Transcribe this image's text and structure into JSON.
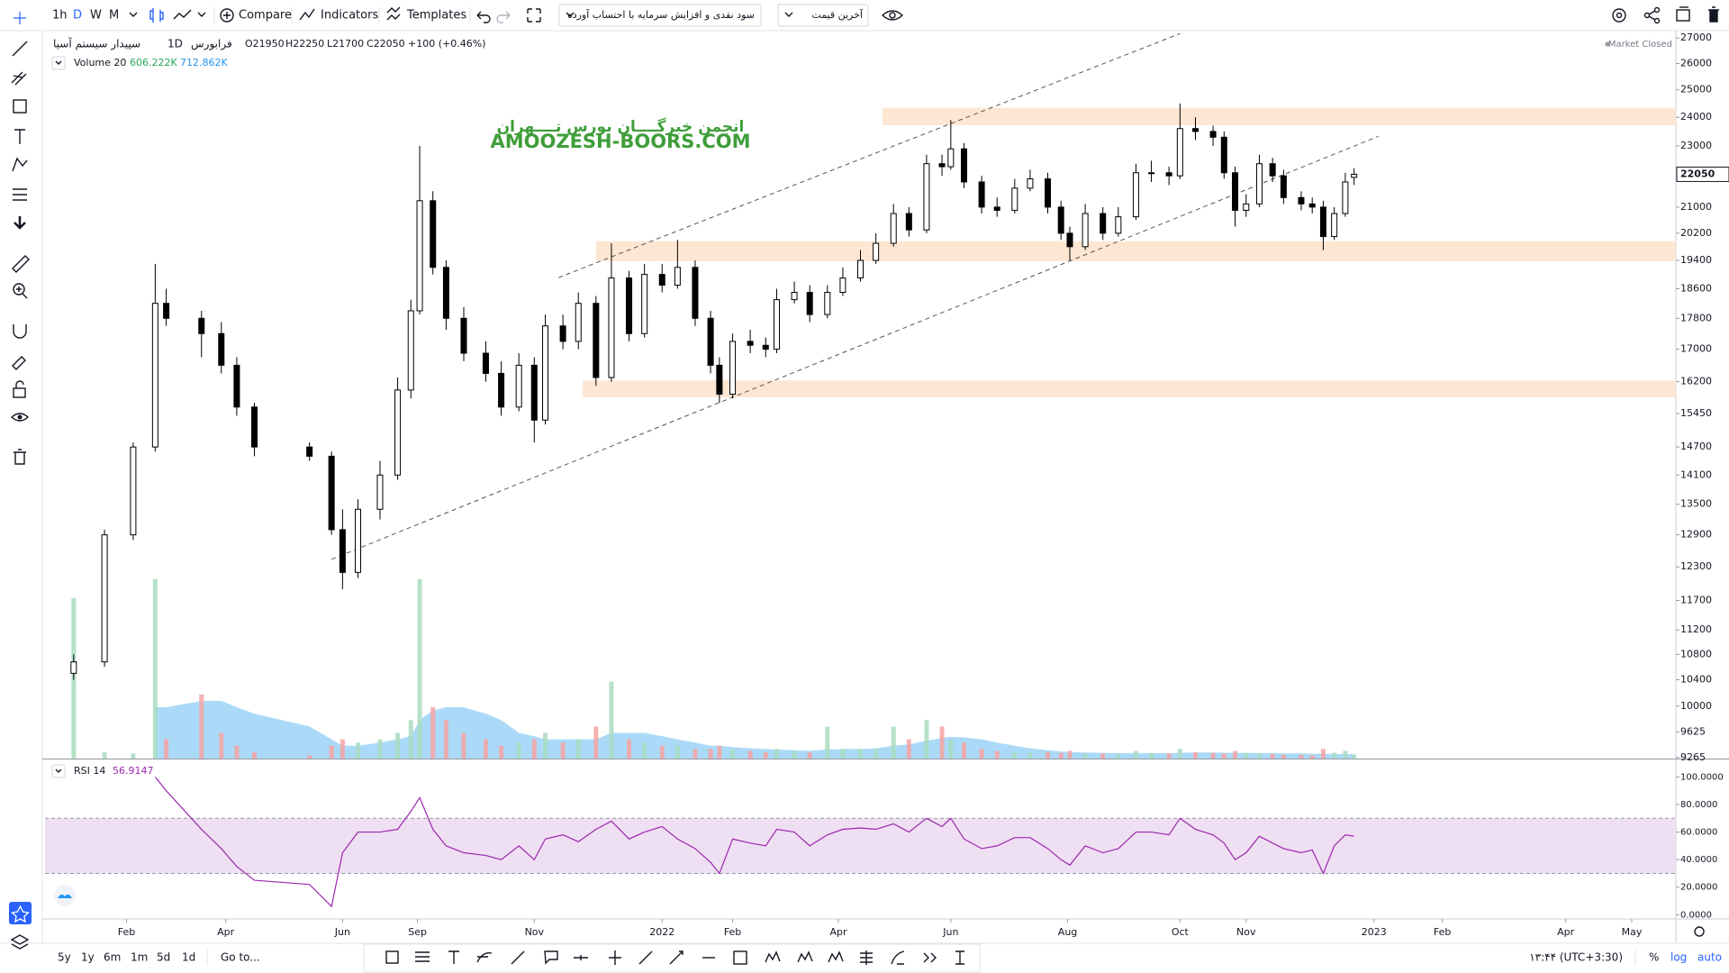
{
  "toolbar": {
    "intervals": [
      "1h",
      "D",
      "W",
      "M"
    ],
    "compare": "Compare",
    "indicators": "Indicators",
    "templates": "Templates",
    "adjustment": "سود نقدی و افزایش سرمایه با احتساب آورده",
    "price_source": "آخرین قیمت"
  },
  "bottom_bar": {
    "ranges": [
      "5y",
      "1y",
      "6m",
      "1m",
      "5d",
      "1d"
    ],
    "goto": "Go to...",
    "clock": "۱۳:۴۴ (UTC+3:30)",
    "percent": "%",
    "log": "log",
    "auto": "auto"
  },
  "chart_data": {
    "type": "candlestick",
    "symbol": "سپیدار سیستم آسیا",
    "interval": "1D",
    "exchange": "فرابورس",
    "legend_labels": [
      "O",
      "H",
      "L",
      "C"
    ],
    "change": "+100 (+0.46%)",
    "status": "Market Closed",
    "watermark": [
      "انجمن خبرگــــان بورس تــــهران",
      "AMOOZESH-BOORS.COM"
    ],
    "watermark_color": "#3f9e3a",
    "x": [
      13,
      27,
      40,
      50,
      55,
      71,
      80,
      87,
      95,
      120,
      130,
      135,
      142,
      152,
      160,
      166,
      170,
      176,
      182,
      190,
      200,
      207,
      215,
      222,
      227,
      235,
      242,
      250,
      257,
      265,
      272,
      280,
      287,
      295,
      302,
      306,
      312,
      320,
      327,
      332,
      340,
      347,
      355,
      362,
      370,
      377,
      385,
      392,
      400,
      407,
      411,
      417,
      425,
      432,
      440,
      447,
      455,
      461,
      465,
      472,
      480,
      487,
      495,
      502,
      510,
      515,
      522,
      530,
      535,
      540,
      545,
      551,
      557,
      562,
      570,
      575,
      580,
      585,
      590,
      594
    ],
    "open": [
      10500,
      10680,
      12900,
      14700,
      18200,
      17800,
      17400,
      16600,
      15600,
      14700,
      14500,
      13000,
      12200,
      13400,
      14100,
      16000,
      18000,
      21200,
      19200,
      17800,
      16900,
      16400,
      15600,
      16600,
      15300,
      17600,
      17200,
      18200,
      16300,
      18900,
      17400,
      19000,
      18700,
      19200,
      17800,
      16600,
      15900,
      17200,
      17100,
      17000,
      18300,
      18500,
      17900,
      18500,
      18900,
      19400,
      19900,
      20800,
      20300,
      22400,
      22300,
      22900,
      21800,
      21000,
      20900,
      21600,
      21900,
      21000,
      20200,
      19800,
      20800,
      20200,
      20700,
      22100,
      22100,
      22000,
      23600,
      23500,
      23300,
      22100,
      20900,
      21100,
      22400,
      22000,
      21300,
      21100,
      21000,
      20100,
      20800,
      21950
    ],
    "high": [
      10800,
      13000,
      14800,
      19300,
      18600,
      18000,
      17700,
      16800,
      15700,
      14800,
      14600,
      13400,
      13600,
      14400,
      16300,
      18300,
      23000,
      21500,
      19400,
      18100,
      17200,
      16700,
      16900,
      16800,
      17900,
      17900,
      18500,
      18400,
      19900,
      19100,
      19300,
      19300,
      20000,
      19400,
      18000,
      16800,
      17400,
      17500,
      17300,
      18600,
      18800,
      18700,
      18700,
      19200,
      19700,
      20200,
      21100,
      21000,
      22700,
      22700,
      23900,
      23100,
      22000,
      21300,
      21900,
      22200,
      22100,
      21200,
      20400,
      21100,
      21000,
      21000,
      22400,
      22500,
      22300,
      24500,
      24000,
      23700,
      23500,
      22300,
      21400,
      22700,
      22600,
      22200,
      21500,
      21300,
      21200,
      21000,
      22100,
      22250
    ],
    "low": [
      10400,
      10600,
      12800,
      14600,
      17600,
      16800,
      16400,
      15400,
      14500,
      14400,
      12900,
      11900,
      12100,
      13200,
      14000,
      15800,
      17900,
      19000,
      17500,
      16700,
      16200,
      15400,
      15500,
      14800,
      15200,
      17000,
      17000,
      16100,
      16200,
      17200,
      17300,
      18500,
      18600,
      17600,
      16400,
      15700,
      15800,
      16900,
      16800,
      16900,
      18200,
      17700,
      17800,
      18400,
      18800,
      19300,
      19800,
      20100,
      20200,
      22000,
      22200,
      21600,
      20800,
      20700,
      20800,
      21500,
      20800,
      20000,
      19400,
      19700,
      20000,
      20100,
      20600,
      21800,
      21700,
      21900,
      23200,
      23000,
      21900,
      20400,
      20700,
      21000,
      21800,
      21100,
      20900,
      20800,
      19700,
      20000,
      20700,
      21700
    ],
    "close": [
      10680,
      12900,
      14700,
      18200,
      17800,
      17400,
      16600,
      15600,
      14700,
      14500,
      13000,
      12200,
      13400,
      14100,
      16000,
      18000,
      21200,
      19200,
      17800,
      16900,
      16400,
      15600,
      16600,
      15300,
      17600,
      17200,
      18200,
      16300,
      18900,
      17400,
      19000,
      18700,
      19200,
      17800,
      16600,
      15900,
      17200,
      17100,
      17000,
      18300,
      18500,
      17900,
      18500,
      18900,
      19400,
      19900,
      20800,
      20300,
      22400,
      22300,
      22900,
      21800,
      21000,
      20900,
      21600,
      21900,
      21000,
      20200,
      19800,
      20800,
      20200,
      20700,
      22100,
      22100,
      22000,
      23600,
      23500,
      23300,
      22100,
      20900,
      21100,
      22400,
      22000,
      21300,
      21100,
      21000,
      20100,
      20800,
      21800,
      22050
    ],
    "up_color": "#ffffff",
    "down_color": "#000000",
    "wick_color": "#000000",
    "xlim": [
      0,
      740
    ],
    "xticks": [
      {
        "value": 37,
        "label": "Feb"
      },
      {
        "value": 82,
        "label": "Apr"
      },
      {
        "value": 135,
        "label": "Jun"
      },
      {
        "value": 169,
        "label": "Sep"
      },
      {
        "value": 222,
        "label": "Nov"
      },
      {
        "value": 280,
        "label": "2022"
      },
      {
        "value": 312,
        "label": "Feb"
      },
      {
        "value": 360,
        "label": "Apr"
      },
      {
        "value": 411,
        "label": "Jun"
      },
      {
        "value": 464,
        "label": "Aug"
      },
      {
        "value": 515,
        "label": "Oct"
      },
      {
        "value": 545,
        "label": "Nov"
      },
      {
        "value": 603,
        "label": "2023"
      },
      {
        "value": 634,
        "label": "Feb"
      },
      {
        "value": 690,
        "label": "Apr"
      },
      {
        "value": 720,
        "label": "May"
      }
    ],
    "ylim": [
      9250,
      27300
    ],
    "yticks": [
      27000,
      26000,
      25000,
      24000,
      23000,
      21000,
      20200,
      19400,
      18600,
      17800,
      17000,
      16200,
      15450,
      14700,
      14100,
      13500,
      12900,
      12300,
      11700,
      11200,
      10800,
      10400,
      10000,
      9625,
      9265
    ],
    "log_scale": true,
    "grid": false,
    "zones": [
      {
        "x0": 380,
        "top": 24340,
        "bottom": 23720
      },
      {
        "x0": 250,
        "top": 19960,
        "bottom": 19380
      },
      {
        "x0": 244,
        "top": 16230,
        "bottom": 15830
      }
    ],
    "zone_color": "#fde6d2",
    "trendlines": [
      {
        "x": [
          233,
          515
        ],
        "y": [
          18910,
          27180
        ]
      },
      {
        "x": [
          130,
          605
        ],
        "y": [
          12440,
          23330
        ]
      }
    ],
    "trendline_color": "#555555",
    "volume": {
      "name": "Volume 20",
      "last_label": "606.222K",
      "ma_label": "712.862K",
      "up_color": "#a8dcbf",
      "down_color": "#f5a3a3",
      "ma_color": "#8fcdf5",
      "ylim": [
        0,
        34000000
      ],
      "values": [
        25000000,
        1000000,
        800000,
        28000000,
        3000000,
        10000000,
        4000000,
        2000000,
        1000000,
        500000,
        2000000,
        3000000,
        2500000,
        3000000,
        4000000,
        6000000,
        28000000,
        8000000,
        6000000,
        4000000,
        3000000,
        2000000,
        2500000,
        3000000,
        4000000,
        2500000,
        3000000,
        5000000,
        12000000,
        3000000,
        2500000,
        2000000,
        2000000,
        1500000,
        1500000,
        2000000,
        1500000,
        1200000,
        1000000,
        1500000,
        1200000,
        1000000,
        5000000,
        1500000,
        1500000,
        1500000,
        5000000,
        3000000,
        6000000,
        5000000,
        3000000,
        2500000,
        1500000,
        1200000,
        1000000,
        1000000,
        1000000,
        900000,
        1200000,
        800000,
        800000,
        700000,
        1200000,
        900000,
        800000,
        1500000,
        1000000,
        900000,
        800000,
        1200000,
        900000,
        800000,
        700000,
        600000,
        600000,
        500000,
        1500000,
        900000,
        1200000,
        606222
      ],
      "ma": [
        null,
        null,
        null,
        8000000,
        8000000,
        9000000,
        9000000,
        8000000,
        7000000,
        5000000,
        3000000,
        2000000,
        2000000,
        2500000,
        3000000,
        3500000,
        6000000,
        7500000,
        8000000,
        8000000,
        7000000,
        6000000,
        4000000,
        3500000,
        3000000,
        3000000,
        3000000,
        3000000,
        4000000,
        4000000,
        4000000,
        3500000,
        3000000,
        2500000,
        2000000,
        2000000,
        1800000,
        1600000,
        1500000,
        1400000,
        1300000,
        1200000,
        1400000,
        1500000,
        1500000,
        1600000,
        2000000,
        2200000,
        2800000,
        3200000,
        3400000,
        3300000,
        3000000,
        2500000,
        2000000,
        1600000,
        1300000,
        1100000,
        1000000,
        950000,
        900000,
        850000,
        850000,
        850000,
        850000,
        900000,
        950000,
        950000,
        900000,
        900000,
        900000,
        850000,
        850000,
        800000,
        800000,
        750000,
        750000,
        720000,
        715000,
        712862
      ]
    },
    "rsi": {
      "name": "RSI 14",
      "color": "#9c27b0",
      "band": [
        30,
        70
      ],
      "band_color": "#efdff2",
      "ylim": [
        -2.4,
        112.7
      ],
      "yticks": [
        {
          "value": 100,
          "label": "100.0000"
        },
        {
          "value": 80,
          "label": "80.0000"
        },
        {
          "value": 60,
          "label": "60.0000"
        },
        {
          "value": 40,
          "label": "40.0000"
        },
        {
          "value": 20,
          "label": "20.0000"
        },
        {
          "value": 0,
          "label": "0.0000"
        }
      ],
      "values": [
        null,
        null,
        null,
        100,
        90,
        62,
        48,
        35,
        25,
        22,
        6,
        45,
        60,
        60,
        62,
        75,
        85,
        62,
        50,
        45,
        43,
        40,
        50,
        40,
        55,
        58,
        53,
        62,
        68,
        55,
        60,
        64,
        55,
        48,
        38,
        30,
        55,
        52,
        50,
        62,
        60,
        50,
        58,
        62,
        63,
        62,
        66,
        60,
        70,
        64,
        70,
        55,
        48,
        50,
        56,
        56,
        48,
        40,
        36,
        50,
        45,
        48,
        60,
        60,
        58,
        70,
        62,
        58,
        52,
        40,
        45,
        57,
        52,
        48,
        45,
        47,
        30,
        50,
        58,
        56.9147
      ]
    }
  }
}
